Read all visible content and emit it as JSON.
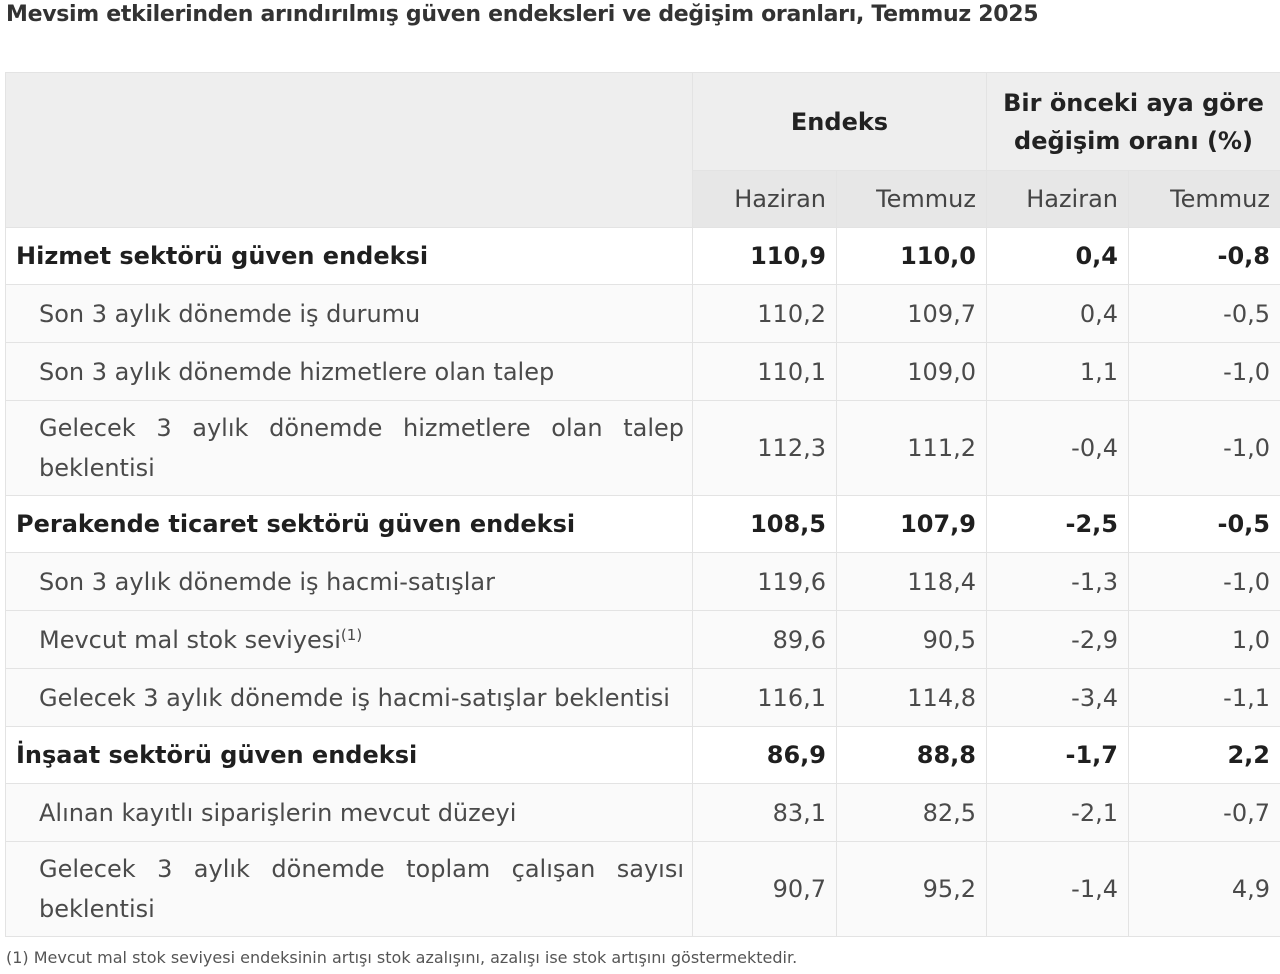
{
  "title": "Mevsim etkilerinden arındırılmış güven endeksleri ve değişim oranları, Temmuz 2025",
  "header": {
    "group_index": "Endeks",
    "group_change": "Bir önceki aya göre değişim oranı (%)",
    "sub_columns": [
      "Haziran",
      "Temmuz",
      "Haziran",
      "Temmuz"
    ]
  },
  "rows": [
    {
      "label": "Hizmet sektörü güven endeksi",
      "values": [
        "110,9",
        "110,0",
        "0,4",
        "-0,8"
      ]
    },
    {
      "label": "Son 3 aylık dönemde iş durumu",
      "values": [
        "110,2",
        "109,7",
        "0,4",
        "-0,5"
      ]
    },
    {
      "label": "Son 3 aylık dönemde hizmetlere olan talep",
      "values": [
        "110,1",
        "109,0",
        "1,1",
        "-1,0"
      ]
    },
    {
      "label": "Gelecek 3 aylık dönemde hizmetlere olan talep beklentisi",
      "values": [
        "112,3",
        "111,2",
        "-0,4",
        "-1,0"
      ]
    },
    {
      "label": "Perakende ticaret sektörü güven endeksi",
      "values": [
        "108,5",
        "107,9",
        "-2,5",
        "-0,5"
      ]
    },
    {
      "label": "Son 3 aylık dönemde iş hacmi-satışlar",
      "values": [
        "119,6",
        "118,4",
        "-1,3",
        "-1,0"
      ]
    },
    {
      "label": "Mevcut mal stok seviyesi",
      "note": "(1)",
      "values": [
        "89,6",
        "90,5",
        "-2,9",
        "1,0"
      ]
    },
    {
      "label": "Gelecek 3 aylık dönemde iş hacmi-satışlar beklentisi",
      "values": [
        "116,1",
        "114,8",
        "-3,4",
        "-1,1"
      ]
    },
    {
      "label": "İnşaat sektörü güven endeksi",
      "values": [
        "86,9",
        "88,8",
        "-1,7",
        "2,2"
      ]
    },
    {
      "label": "Alınan kayıtlı siparişlerin mevcut düzeyi",
      "values": [
        "83,1",
        "82,5",
        "-2,1",
        "-0,7"
      ]
    },
    {
      "label": "Gelecek 3 aylık dönemde toplam çalışan sayısı beklentisi",
      "values": [
        "90,7",
        "95,2",
        "-1,4",
        "4,9"
      ]
    }
  ],
  "footnote": "(1) Mevcut mal stok seviyesi endeksinin artışı stok azalışını, azalışı ise stok artışını göstermektedir."
}
